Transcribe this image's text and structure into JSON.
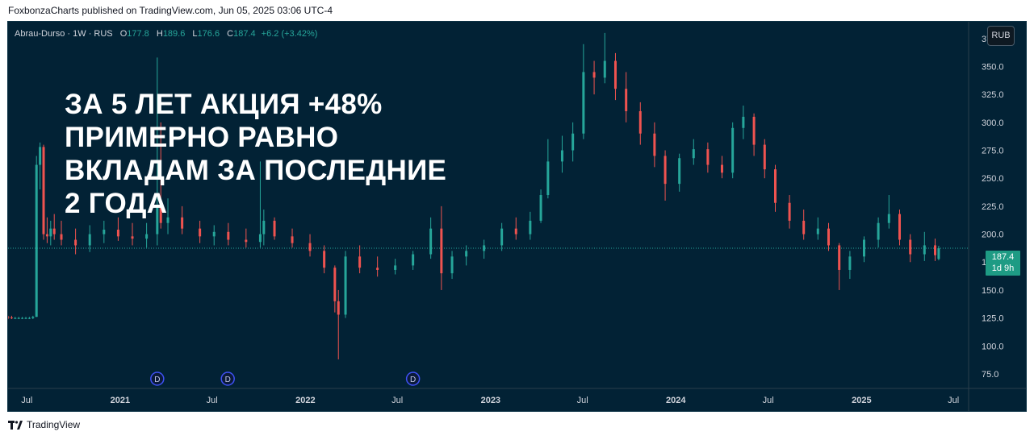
{
  "caption": "FoxbonzaCharts published on TradingView.com, Jun 05, 2025 03:06 UTC-4",
  "legend": {
    "symbol": "Abrau-Durso · 1W · RUS",
    "open_label": "O",
    "open": "177.8",
    "high_label": "H",
    "high": "189.6",
    "low_label": "L",
    "low": "176.6",
    "close_label": "C",
    "close": "187.4",
    "change": "+6.2 (+3.42%)"
  },
  "currency_button": "RUB",
  "overlay_text": [
    "ЗА 5 ЛЕТ АКЦИЯ +48%",
    "ПРИМЕРНО РАВНО",
    "ВКЛАДАМ ЗА ПОСЛЕДНИЕ",
    "2 ГОДА"
  ],
  "price_tag": {
    "price": "187.4",
    "countdown": "1d 9h"
  },
  "footer": {
    "brand": "TradingView",
    "logo_icon": "tradingview-logo-icon"
  },
  "dividend_marker": "D",
  "colors": {
    "background": "#022235",
    "up": "#26a69a",
    "down": "#ef5350",
    "text": "#d1d4dc"
  },
  "chart_data": {
    "type": "candlestick",
    "symbol": "Abrau-Durso",
    "interval": "1W",
    "exchange": "RUS",
    "currency": "RUB",
    "ylim": [
      62,
      390
    ],
    "y_ticks": [
      "375.0",
      "350.0",
      "325.0",
      "300.0",
      "275.0",
      "250.0",
      "225.0",
      "200.0",
      "175.0",
      "150.0",
      "125.0",
      "100.0",
      "75.0"
    ],
    "x_ticks": [
      "Jul",
      "2021",
      "Jul",
      "2022",
      "Jul",
      "2023",
      "Jul",
      "2024",
      "Jul",
      "2025",
      "Jul"
    ],
    "x_tick_dates": [
      "2020-07-01",
      "2021-01-01",
      "2021-07-01",
      "2022-01-01",
      "2022-07-01",
      "2023-01-01",
      "2023-07-01",
      "2024-01-01",
      "2024-07-01",
      "2025-01-01",
      "2025-07-01"
    ],
    "date_range": [
      "2020-05-25",
      "2025-07-31"
    ],
    "dividends": [
      "2021-03-15",
      "2021-08-01",
      "2022-08-01"
    ],
    "last_price": 187.4,
    "ohlc": [
      [
        "2020-05-25",
        126,
        127,
        124,
        125.5
      ],
      [
        "2020-06-01",
        125.5,
        127,
        124,
        125
      ],
      [
        "2020-06-08",
        125,
        126,
        124,
        125
      ],
      [
        "2020-06-15",
        125,
        126,
        124,
        125
      ],
      [
        "2020-06-22",
        125,
        126,
        124,
        125
      ],
      [
        "2020-06-29",
        125,
        126,
        124,
        125
      ],
      [
        "2020-07-06",
        125,
        126,
        124,
        125
      ],
      [
        "2020-07-13",
        125,
        127,
        124,
        126
      ],
      [
        "2020-07-20",
        126,
        270,
        126,
        262
      ],
      [
        "2020-07-27",
        262,
        282,
        240,
        278
      ],
      [
        "2020-08-03",
        278,
        280,
        195,
        200
      ],
      [
        "2020-08-10",
        200,
        215,
        192,
        198
      ],
      [
        "2020-08-17",
        198,
        212,
        190,
        205
      ],
      [
        "2020-08-24",
        205,
        218,
        195,
        200
      ],
      [
        "2020-09-07",
        200,
        212,
        190,
        195
      ],
      [
        "2020-10-05",
        195,
        205,
        182,
        190
      ],
      [
        "2020-11-02",
        190,
        208,
        184,
        200
      ],
      [
        "2020-11-30",
        200,
        212,
        192,
        204
      ],
      [
        "2020-12-28",
        204,
        215,
        194,
        198
      ],
      [
        "2021-01-25",
        198,
        210,
        190,
        196
      ],
      [
        "2021-02-22",
        196,
        210,
        188,
        200
      ],
      [
        "2021-03-15",
        200,
        358,
        190,
        225
      ],
      [
        "2021-03-22",
        225,
        300,
        205,
        210
      ],
      [
        "2021-04-05",
        210,
        232,
        200,
        215
      ],
      [
        "2021-05-03",
        215,
        225,
        200,
        205
      ],
      [
        "2021-06-07",
        205,
        212,
        192,
        198
      ],
      [
        "2021-07-05",
        198,
        208,
        190,
        202
      ],
      [
        "2021-08-02",
        202,
        210,
        190,
        195
      ],
      [
        "2021-09-06",
        195,
        205,
        188,
        193
      ],
      [
        "2021-10-04",
        193,
        265,
        188,
        200
      ],
      [
        "2021-10-11",
        200,
        222,
        190,
        212
      ],
      [
        "2021-11-01",
        212,
        215,
        195,
        198
      ],
      [
        "2021-12-06",
        198,
        205,
        188,
        192
      ],
      [
        "2022-01-10",
        192,
        200,
        180,
        185
      ],
      [
        "2022-02-07",
        185,
        190,
        165,
        170
      ],
      [
        "2022-02-28",
        170,
        172,
        130,
        140
      ],
      [
        "2022-03-07",
        140,
        150,
        88,
        128
      ],
      [
        "2022-03-21",
        128,
        185,
        125,
        180
      ],
      [
        "2022-04-18",
        180,
        190,
        165,
        170
      ],
      [
        "2022-05-23",
        170,
        180,
        162,
        168
      ],
      [
        "2022-06-27",
        168,
        178,
        164,
        172
      ],
      [
        "2022-08-01",
        172,
        185,
        168,
        182
      ],
      [
        "2022-09-05",
        182,
        215,
        178,
        205
      ],
      [
        "2022-09-26",
        205,
        225,
        150,
        165
      ],
      [
        "2022-10-17",
        165,
        185,
        160,
        180
      ],
      [
        "2022-11-14",
        180,
        190,
        172,
        185
      ],
      [
        "2022-12-19",
        185,
        195,
        178,
        190
      ],
      [
        "2023-01-23",
        190,
        210,
        185,
        205
      ],
      [
        "2023-02-20",
        205,
        215,
        195,
        200
      ],
      [
        "2023-03-20",
        200,
        220,
        195,
        212
      ],
      [
        "2023-04-10",
        212,
        240,
        210,
        235
      ],
      [
        "2023-04-24",
        235,
        285,
        232,
        265
      ],
      [
        "2023-05-22",
        265,
        288,
        255,
        275
      ],
      [
        "2023-06-12",
        275,
        300,
        265,
        290
      ],
      [
        "2023-07-03",
        290,
        370,
        285,
        345
      ],
      [
        "2023-07-24",
        345,
        355,
        325,
        340
      ],
      [
        "2023-08-14",
        340,
        380,
        335,
        355
      ],
      [
        "2023-09-04",
        355,
        362,
        320,
        330
      ],
      [
        "2023-09-25",
        330,
        345,
        300,
        310
      ],
      [
        "2023-10-23",
        310,
        318,
        280,
        290
      ],
      [
        "2023-11-20",
        290,
        300,
        260,
        270
      ],
      [
        "2023-12-11",
        270,
        275,
        230,
        245
      ],
      [
        "2024-01-08",
        245,
        272,
        238,
        268
      ],
      [
        "2024-02-05",
        268,
        285,
        262,
        276
      ],
      [
        "2024-03-04",
        276,
        282,
        255,
        262
      ],
      [
        "2024-04-01",
        262,
        270,
        250,
        255
      ],
      [
        "2024-04-22",
        255,
        300,
        250,
        295
      ],
      [
        "2024-05-13",
        295,
        315,
        285,
        305
      ],
      [
        "2024-06-03",
        305,
        308,
        270,
        280
      ],
      [
        "2024-06-24",
        280,
        285,
        250,
        258
      ],
      [
        "2024-07-15",
        258,
        262,
        220,
        228
      ],
      [
        "2024-08-12",
        228,
        235,
        205,
        212
      ],
      [
        "2024-09-09",
        212,
        222,
        195,
        200
      ],
      [
        "2024-10-07",
        200,
        215,
        195,
        205
      ],
      [
        "2024-10-28",
        205,
        210,
        185,
        190
      ],
      [
        "2024-11-18",
        190,
        192,
        150,
        168
      ],
      [
        "2024-12-09",
        168,
        185,
        160,
        180
      ],
      [
        "2025-01-06",
        180,
        198,
        175,
        195
      ],
      [
        "2025-02-03",
        195,
        215,
        188,
        210
      ],
      [
        "2025-02-24",
        210,
        235,
        205,
        218
      ],
      [
        "2025-03-17",
        218,
        222,
        190,
        195
      ],
      [
        "2025-04-07",
        195,
        200,
        175,
        182
      ],
      [
        "2025-05-05",
        182,
        202,
        176,
        190
      ],
      [
        "2025-05-26",
        190,
        196,
        176,
        181.2
      ],
      [
        "2025-06-02",
        177.8,
        189.6,
        176.6,
        187.4
      ]
    ]
  }
}
